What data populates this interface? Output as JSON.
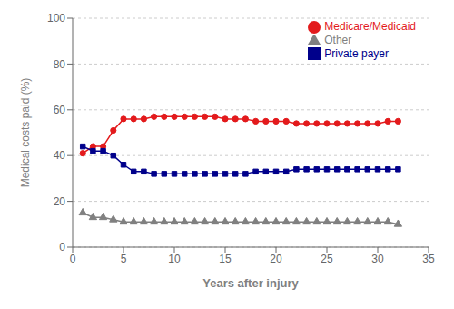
{
  "chart_data": {
    "type": "line",
    "x": [
      1,
      2,
      3,
      4,
      5,
      6,
      7,
      8,
      9,
      10,
      11,
      12,
      13,
      14,
      15,
      16,
      17,
      18,
      19,
      20,
      21,
      22,
      23,
      24,
      25,
      26,
      27,
      28,
      29,
      30,
      31,
      32
    ],
    "series": [
      {
        "name": "Medicare/Medicaid",
        "color": "#e31a1c",
        "marker": "circle",
        "values": [
          41,
          44,
          44,
          51,
          56,
          56,
          56,
          57,
          57,
          57,
          57,
          57,
          57,
          57,
          56,
          56,
          56,
          55,
          55,
          55,
          55,
          54,
          54,
          54,
          54,
          54,
          54,
          54,
          54,
          54,
          55,
          55
        ]
      },
      {
        "name": "Private payer",
        "color": "#00008b",
        "marker": "square",
        "values": [
          44,
          42,
          42,
          40,
          36,
          33,
          33,
          32,
          32,
          32,
          32,
          32,
          32,
          32,
          32,
          32,
          32,
          33,
          33,
          33,
          33,
          34,
          34,
          34,
          34,
          34,
          34,
          34,
          34,
          34,
          34,
          34
        ]
      },
      {
        "name": "Other",
        "color": "#808080",
        "marker": "triangle",
        "values": [
          15,
          13,
          13,
          12,
          11,
          11,
          11,
          11,
          11,
          11,
          11,
          11,
          11,
          11,
          11,
          11,
          11,
          11,
          11,
          11,
          11,
          11,
          11,
          11,
          11,
          11,
          11,
          11,
          11,
          11,
          11,
          10
        ]
      }
    ],
    "xlabel": "Years after injury",
    "ylabel": "Medical costs paid (%)",
    "xlim": [
      0,
      35
    ],
    "ylim": [
      0,
      100
    ],
    "xticks": [
      0,
      5,
      10,
      15,
      20,
      25,
      30,
      35
    ],
    "yticks": [
      0,
      20,
      40,
      60,
      80,
      100
    ],
    "grid": true,
    "legend": "upper right"
  }
}
